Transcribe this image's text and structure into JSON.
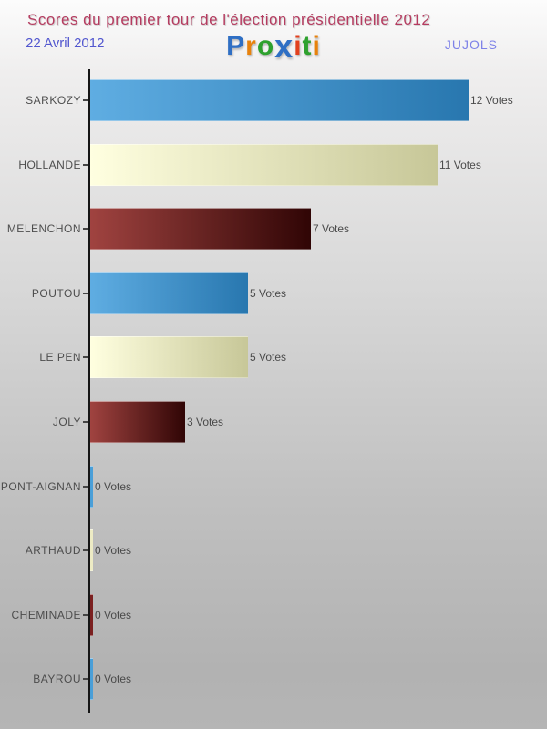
{
  "header": {
    "title": "Scores du premier tour de l'élection présidentielle 2012",
    "date": "22 Avril 2012",
    "place": "JUJOLS",
    "logo": {
      "name": "proxiti-logo",
      "letters": [
        {
          "ch": "P",
          "color": "#2f6fc4",
          "big": false
        },
        {
          "ch": "r",
          "color": "#e8820c",
          "big": false
        },
        {
          "ch": "o",
          "color": "#2ea12e",
          "big": false
        },
        {
          "ch": "x",
          "color": "#2f6fc4",
          "big": true
        },
        {
          "ch": "i",
          "color": "#e2401d",
          "big": false
        },
        {
          "ch": "t",
          "color": "#2ea12e",
          "big": false
        },
        {
          "ch": "i",
          "color": "#e8820c",
          "big": false
        }
      ]
    }
  },
  "chart_data": {
    "type": "bar",
    "orientation": "horizontal",
    "title": "Scores du premier tour de l'élection présidentielle 2012",
    "subtitle_left": "22 Avril 2012",
    "subtitle_right": "JUJOLS",
    "categories": [
      "SARKOZY",
      "HOLLANDE",
      "MELENCHON",
      "POUTOU",
      "LE PEN",
      "JOLY",
      "DUPONT-AIGNAN",
      "ARTHAUD",
      "CHEMINADE",
      "BAYROU"
    ],
    "values": [
      12,
      11,
      7,
      5,
      5,
      3,
      0,
      0,
      0,
      0
    ],
    "value_labels": [
      "12 Votes",
      "11 Votes",
      "7 Votes",
      "5 Votes",
      "5 Votes",
      "3 Votes",
      "0 Votes",
      "0 Votes",
      "0 Votes",
      "0 Votes"
    ],
    "value_suffix": " Votes",
    "xlim": [
      0,
      12
    ],
    "grid": false,
    "legend": false,
    "bar_color_cycle": [
      {
        "name": "blue",
        "start": "#5fade2",
        "end": "#2877af",
        "zero": "#4a9fd8"
      },
      {
        "name": "cream",
        "start": "#ffffe0",
        "end": "#c7c798",
        "zero": "#edebc4"
      },
      {
        "name": "maroon",
        "start": "#a04340",
        "end": "#300505",
        "zero": "#7b2020"
      }
    ],
    "axis_color": "#151515",
    "label_color": "#4d4d4d"
  }
}
